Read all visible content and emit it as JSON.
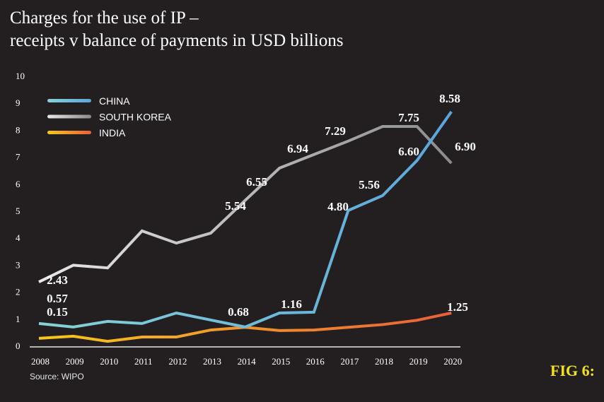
{
  "chart_data": {
    "type": "line",
    "title": "Charges for the use of IP –",
    "subtitle": "receipts v balance of payments in USD billions",
    "xlabel": "",
    "ylabel": "",
    "categories": [
      "2008",
      "2009",
      "2010",
      "2011",
      "2012",
      "2013",
      "2014",
      "2015",
      "2016",
      "2017",
      "2018",
      "2019",
      "2020"
    ],
    "y_ticks": [
      "0",
      "1",
      "2",
      "3",
      "4",
      "5",
      "6",
      "7",
      "8",
      "9",
      "10"
    ],
    "ylim": [
      0,
      10
    ],
    "grid": false,
    "legend": "top-left",
    "series": [
      {
        "name": "CHINA",
        "colors": [
          "#86d3d6",
          "#5aa6dc"
        ],
        "values": [
          0.84,
          0.71,
          0.92,
          0.84,
          1.23,
          0.97,
          0.71,
          1.23,
          1.26,
          5.03,
          5.58,
          6.88,
          8.69
        ]
      },
      {
        "name": "SOUTH KOREA",
        "colors": [
          "#e8e8e8",
          "#8c8c8c"
        ],
        "values": [
          2.38,
          3.0,
          2.9,
          4.27,
          3.82,
          4.19,
          5.4,
          6.6,
          7.1,
          7.6,
          8.14,
          8.14,
          6.78
        ]
      },
      {
        "name": "INDIA",
        "colors": [
          "#f7c81a",
          "#ea5f3a"
        ],
        "values": [
          0.29,
          0.37,
          0.18,
          0.34,
          0.34,
          0.6,
          0.7,
          0.58,
          0.6,
          0.7,
          0.8,
          0.96,
          1.23
        ]
      }
    ],
    "data_labels": [
      "2.43",
      "0.57",
      "0.15",
      "0.68",
      "1.16",
      "5.54",
      "6.55",
      "6.94",
      "7.29",
      "7.75",
      "6.60",
      "5.56",
      "4.80",
      "8.58",
      "6.90",
      "1.25"
    ]
  },
  "source": "Source: WIPO",
  "figure_label": "FIG 6:"
}
